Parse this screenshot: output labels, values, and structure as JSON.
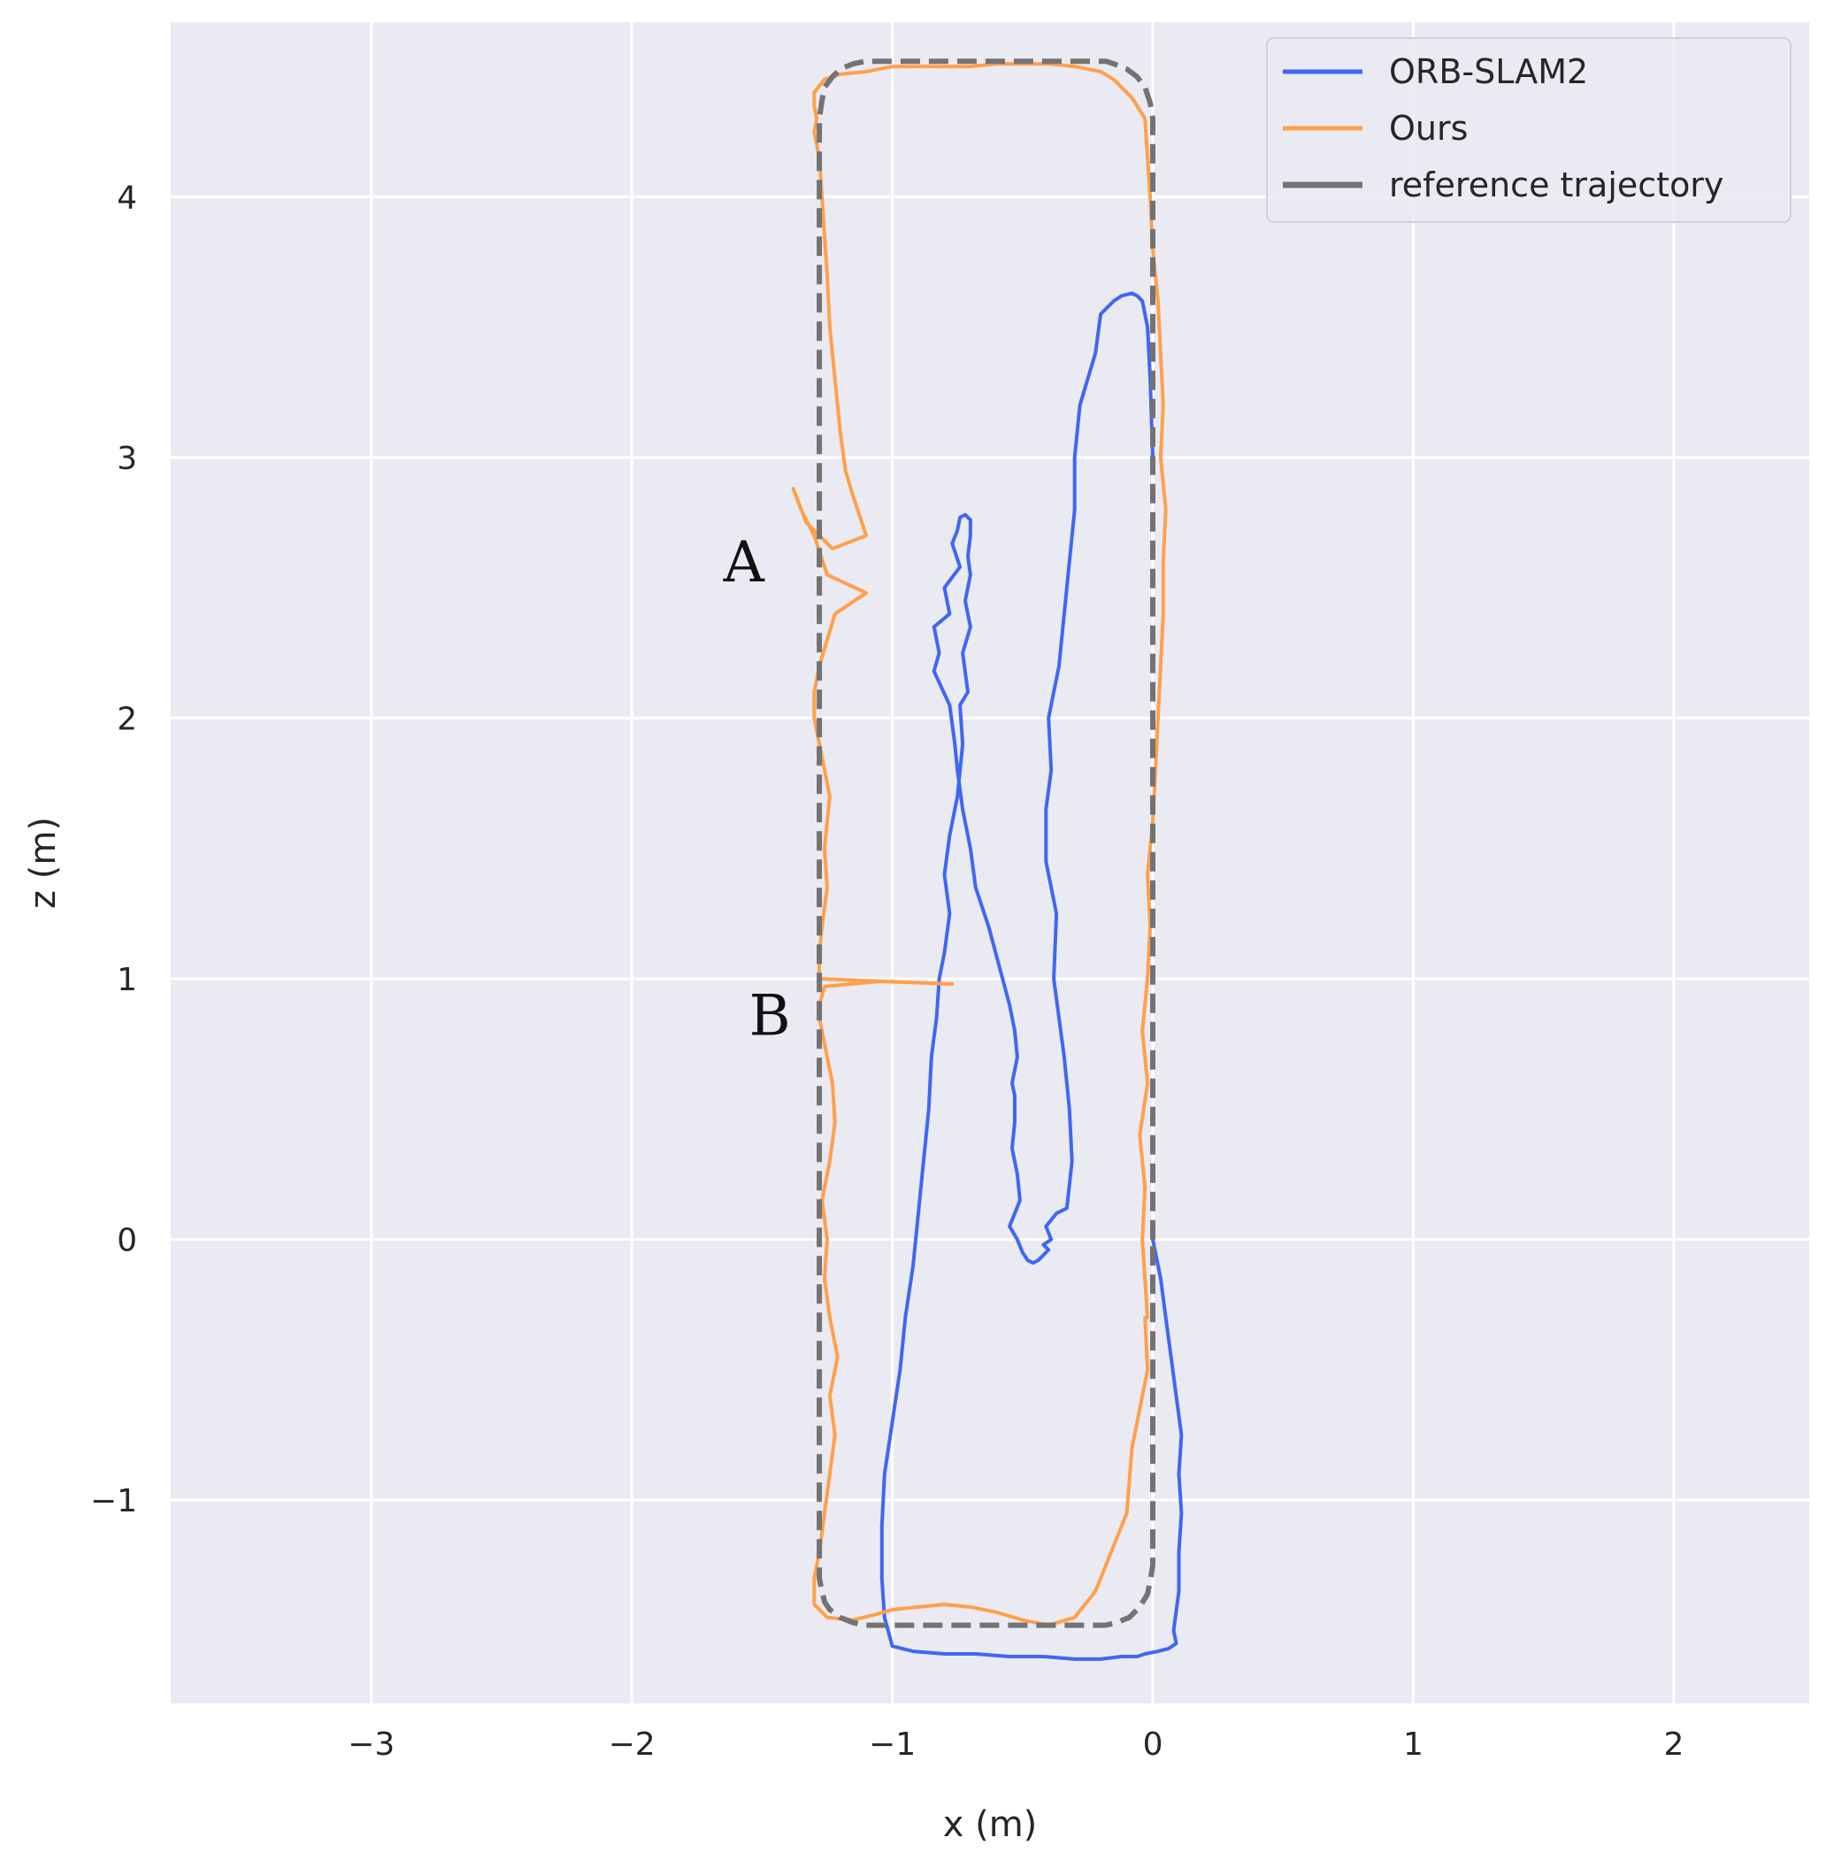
{
  "chart_data": {
    "type": "line",
    "title": "",
    "xlabel": "x (m)",
    "ylabel": "z (m)",
    "xlim": [
      -3.77,
      2.52
    ],
    "ylim": [
      -1.78,
      4.67
    ],
    "x_ticks": [
      -3,
      -2,
      -1,
      0,
      1,
      2
    ],
    "x_tick_labels": [
      "−3",
      "−2",
      "−1",
      "0",
      "1",
      "2"
    ],
    "y_ticks": [
      -1,
      0,
      1,
      2,
      3,
      4
    ],
    "y_tick_labels": [
      "−1",
      "0",
      "1",
      "2",
      "3",
      "4"
    ],
    "grid": true,
    "legend_position": "top-right",
    "colors": {
      "background": "#eaeaf2",
      "grid": "#ffffff"
    },
    "annotations": [
      {
        "text": "A",
        "x": -1.57,
        "y": 2.6
      },
      {
        "text": "B",
        "x": -1.47,
        "y": 0.86
      }
    ],
    "series": [
      {
        "name": "ORB-SLAM2",
        "color": "#3f67f5",
        "style": "solid",
        "x": [
          0.0,
          0.03,
          0.05,
          0.07,
          0.09,
          0.11,
          0.1,
          0.11,
          0.1,
          0.1,
          0.08,
          0.09,
          0.06,
          0.02,
          -0.03,
          -0.06,
          -0.12,
          -0.2,
          -0.3,
          -0.42,
          -0.55,
          -0.68,
          -0.8,
          -0.92,
          -1.0,
          -1.03,
          -1.04,
          -1.04,
          -1.03,
          -1.0,
          -0.97,
          -0.95,
          -0.92,
          -0.9,
          -0.88,
          -0.86,
          -0.85,
          -0.83,
          -0.82,
          -0.8,
          -0.78,
          -0.8,
          -0.78,
          -0.75,
          -0.73,
          -0.74,
          -0.71,
          -0.73,
          -0.7,
          -0.72,
          -0.7,
          -0.71,
          -0.7,
          -0.7,
          -0.72,
          -0.74,
          -0.75,
          -0.77,
          -0.74,
          -0.8,
          -0.78,
          -0.84,
          -0.82,
          -0.84,
          -0.78,
          -0.76,
          -0.75,
          -0.73,
          -0.7,
          -0.68,
          -0.63,
          -0.59,
          -0.55,
          -0.53,
          -0.52,
          -0.54,
          -0.53,
          -0.53,
          -0.53,
          -0.54,
          -0.52,
          -0.51,
          -0.55,
          -0.52,
          -0.5,
          -0.48,
          -0.46,
          -0.44,
          -0.42,
          -0.4,
          -0.42,
          -0.39,
          -0.41,
          -0.37,
          -0.33,
          -0.31,
          -0.32,
          -0.34,
          -0.36,
          -0.38,
          -0.37,
          -0.41,
          -0.41,
          -0.39,
          -0.4,
          -0.36,
          -0.34,
          -0.32,
          -0.3,
          -0.3,
          -0.28,
          -0.22,
          -0.2,
          -0.15,
          -0.12,
          -0.08,
          -0.06,
          -0.04,
          -0.02,
          -0.01,
          0.0
        ],
        "y": [
          0.0,
          -0.15,
          -0.3,
          -0.45,
          -0.6,
          -0.75,
          -0.9,
          -1.05,
          -1.2,
          -1.35,
          -1.5,
          -1.55,
          -1.57,
          -1.58,
          -1.59,
          -1.6,
          -1.6,
          -1.61,
          -1.61,
          -1.6,
          -1.6,
          -1.59,
          -1.59,
          -1.58,
          -1.56,
          -1.45,
          -1.3,
          -1.1,
          -0.9,
          -0.7,
          -0.5,
          -0.3,
          -0.1,
          0.1,
          0.3,
          0.5,
          0.7,
          0.85,
          1.0,
          1.1,
          1.25,
          1.4,
          1.55,
          1.7,
          1.9,
          2.05,
          2.1,
          2.25,
          2.35,
          2.45,
          2.55,
          2.62,
          2.7,
          2.76,
          2.78,
          2.77,
          2.72,
          2.67,
          2.58,
          2.5,
          2.4,
          2.35,
          2.25,
          2.18,
          2.05,
          1.9,
          1.8,
          1.65,
          1.5,
          1.35,
          1.2,
          1.05,
          0.9,
          0.8,
          0.7,
          0.6,
          0.55,
          0.5,
          0.45,
          0.35,
          0.25,
          0.15,
          0.05,
          0.0,
          -0.05,
          -0.08,
          -0.09,
          -0.08,
          -0.06,
          -0.04,
          -0.02,
          0.0,
          0.05,
          0.1,
          0.12,
          0.3,
          0.5,
          0.7,
          0.85,
          1.0,
          1.25,
          1.45,
          1.65,
          1.8,
          2.0,
          2.2,
          2.4,
          2.6,
          2.8,
          3.0,
          3.2,
          3.4,
          3.55,
          3.6,
          3.62,
          3.63,
          3.62,
          3.6,
          3.5,
          3.3,
          3.0
        ]
      },
      {
        "name": "Ours",
        "color": "#ffa04a",
        "style": "solid",
        "x": [
          -0.03,
          -0.02,
          -0.05,
          -0.08,
          -0.1,
          -0.16,
          -0.22,
          -0.3,
          -0.4,
          -0.5,
          -0.6,
          -0.7,
          -0.8,
          -0.9,
          -1.0,
          -1.07,
          -1.15,
          -1.25,
          -1.3,
          -1.3,
          -1.28,
          -1.26,
          -1.24,
          -1.22,
          -1.24,
          -1.21,
          -1.24,
          -1.26,
          -1.25,
          -1.27,
          -1.24,
          -1.22,
          -1.23,
          -1.26,
          -1.28,
          -1.28,
          -1.26,
          -1.05,
          -0.77,
          -1.28,
          -1.28,
          -1.27,
          -1.25,
          -1.26,
          -1.24,
          -1.27,
          -1.3,
          -1.3,
          -1.28,
          -1.25,
          -1.22,
          -1.1,
          -1.25,
          -1.3,
          -1.35,
          -1.38,
          -1.33,
          -1.23,
          -1.1,
          -1.15,
          -1.18,
          -1.2,
          -1.22,
          -1.24,
          -1.25,
          -1.26,
          -1.27,
          -1.28,
          -1.3,
          -1.29,
          -1.3,
          -1.3,
          -1.26,
          -1.2,
          -1.1,
          -1.0,
          -0.9,
          -0.8,
          -0.7,
          -0.6,
          -0.5,
          -0.4,
          -0.3,
          -0.2,
          -0.15,
          -0.08,
          -0.03,
          -0.02,
          -0.01,
          0.0,
          0.02,
          0.03,
          0.04,
          0.03,
          0.05,
          0.04,
          0.04,
          0.03,
          0.02,
          0.01,
          0.0,
          -0.02,
          -0.01,
          -0.02,
          -0.04,
          -0.02,
          -0.05,
          -0.03,
          -0.04,
          -0.02
        ],
        "y": [
          -0.3,
          -0.5,
          -0.65,
          -0.8,
          -1.05,
          -1.2,
          -1.35,
          -1.45,
          -1.48,
          -1.46,
          -1.43,
          -1.41,
          -1.4,
          -1.41,
          -1.42,
          -1.44,
          -1.46,
          -1.45,
          -1.4,
          -1.3,
          -1.2,
          -1.05,
          -0.9,
          -0.75,
          -0.6,
          -0.45,
          -0.3,
          -0.15,
          0.0,
          0.15,
          0.3,
          0.45,
          0.6,
          0.75,
          0.85,
          0.9,
          0.97,
          0.99,
          0.98,
          1.0,
          1.1,
          1.2,
          1.35,
          1.5,
          1.7,
          1.85,
          2.0,
          2.1,
          2.2,
          2.3,
          2.4,
          2.48,
          2.55,
          2.7,
          2.8,
          2.88,
          2.75,
          2.65,
          2.7,
          2.85,
          2.95,
          3.1,
          3.3,
          3.5,
          3.7,
          3.85,
          4.0,
          4.15,
          4.25,
          4.3,
          4.35,
          4.4,
          4.45,
          4.47,
          4.48,
          4.5,
          4.5,
          4.5,
          4.5,
          4.51,
          4.51,
          4.51,
          4.5,
          4.48,
          4.45,
          4.38,
          4.3,
          4.15,
          4.0,
          3.8,
          3.6,
          3.4,
          3.2,
          3.0,
          2.8,
          2.6,
          2.4,
          2.2,
          2.0,
          1.8,
          1.6,
          1.4,
          1.2,
          1.0,
          0.8,
          0.6,
          0.4,
          0.2,
          0.0,
          -0.3
        ]
      },
      {
        "name": "reference trajectory",
        "color": "#737373",
        "style": "dashed",
        "x": [
          0.0,
          0.0,
          -0.01,
          -0.03,
          -0.06,
          -0.1,
          -0.15,
          -0.18,
          -1.1,
          -1.15,
          -1.2,
          -1.23,
          -1.26,
          -1.27,
          -1.28,
          -1.28,
          -1.28,
          -1.27,
          -1.26,
          -1.24,
          -1.2,
          -1.15,
          -1.1,
          -0.18,
          -0.14,
          -0.09,
          -0.05,
          -0.02,
          -0.01,
          0.0,
          0.0
        ],
        "y": [
          0.0,
          4.3,
          4.36,
          4.42,
          4.46,
          4.49,
          4.51,
          4.52,
          4.52,
          4.51,
          4.49,
          4.46,
          4.42,
          4.37,
          4.3,
          2.0,
          -1.3,
          -1.35,
          -1.39,
          -1.42,
          -1.45,
          -1.47,
          -1.48,
          -1.48,
          -1.47,
          -1.45,
          -1.41,
          -1.36,
          -1.31,
          -1.25,
          0.0
        ]
      }
    ]
  }
}
